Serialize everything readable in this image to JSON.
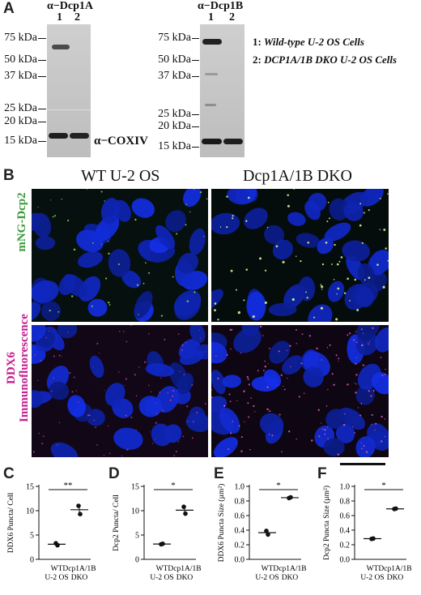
{
  "panels": {
    "A": "A",
    "B": "B",
    "C": "C",
    "D": "D",
    "E": "E",
    "F": "F"
  },
  "blots": [
    {
      "antibody": "α−Dcp1A",
      "lanes": [
        "1",
        "2"
      ],
      "mw_markers": [
        "75 kDa",
        "50 kDa",
        "37 kDa",
        "25 kDa",
        "20 kDa",
        "15 kDa"
      ],
      "loading_control": "α−COXIV"
    },
    {
      "antibody": "α−Dcp1B",
      "lanes": [
        "1",
        "2"
      ],
      "mw_markers": [
        "75 kDa",
        "50 kDa",
        "37 kDa",
        "25 kDa",
        "20 kDa",
        "15 kDa"
      ]
    }
  ],
  "legend": [
    {
      "num": "1:",
      "text": "Wild-type U-2 OS Cells"
    },
    {
      "num": "2:",
      "text": "DCP1A/1B DKO U-2 OS Cells"
    }
  ],
  "micrographs": {
    "columns": [
      "WT U-2 OS",
      "Dcp1A/1B DKO"
    ],
    "rows": [
      {
        "lines": [
          "mNG-Dcp2"
        ],
        "color": "#3c9a3c"
      },
      {
        "lines": [
          "DDX6",
          "Immunofluorescence"
        ],
        "color": "#c21f8f"
      }
    ]
  },
  "charts": [
    {
      "type": "scatter",
      "ylabel": "DDX6 Puncta/ Cell",
      "yticks": [
        "0",
        "5",
        "10",
        "15"
      ],
      "ylim": [
        0,
        15
      ],
      "categories": [
        [
          "WT",
          "U-2 OS"
        ],
        [
          "Dcp1A/1B",
          "DKO"
        ]
      ],
      "points": [
        [
          3.3,
          2.9
        ],
        [
          11.0,
          9.3
        ]
      ],
      "means": [
        3.1,
        10.2
      ],
      "significance": "**"
    },
    {
      "type": "scatter",
      "ylabel": "Dcp2 Puncta/ Cell",
      "yticks": [
        "0",
        "5",
        "10",
        "15"
      ],
      "ylim": [
        0,
        15
      ],
      "categories": [
        [
          "WT",
          "U-2 OS"
        ],
        [
          "Dcp1A/1B",
          "DKO"
        ]
      ],
      "points": [
        [
          3.1,
          3.2
        ],
        [
          10.8,
          9.4
        ]
      ],
      "means": [
        3.15,
        10.1
      ],
      "significance": "*"
    },
    {
      "type": "scatter",
      "ylabel": "DDX6 Puncta Size (µm²)",
      "yticks": [
        "0.0",
        "0.2",
        "0.4",
        "0.6",
        "0.8",
        "1.0"
      ],
      "ylim": [
        0,
        1.0
      ],
      "categories": [
        [
          "WT",
          "U-2 OS"
        ],
        [
          "Dcp1A/1B",
          "DKO"
        ]
      ],
      "points": [
        [
          0.39,
          0.34
        ],
        [
          0.84,
          0.85
        ]
      ],
      "means": [
        0.365,
        0.845
      ],
      "significance": "*"
    },
    {
      "type": "scatter",
      "ylabel": "Dcp2 Puncta Size (µm²)",
      "yticks": [
        "0.0",
        "0.2",
        "0.4",
        "0.6",
        "0.8",
        "1.0"
      ],
      "ylim": [
        0,
        1.0
      ],
      "categories": [
        [
          "WT",
          "U-2 OS"
        ],
        [
          "Dcp1A/1B",
          "DKO"
        ]
      ],
      "points": [
        [
          0.28,
          0.285
        ],
        [
          0.69,
          0.695
        ]
      ],
      "means": [
        0.283,
        0.692
      ],
      "significance": "*"
    }
  ],
  "chart_data": [
    {
      "type": "scatter",
      "ylabel": "DDX6 Puncta/ Cell",
      "categories": [
        "WT U-2 OS",
        "Dcp1A/1B DKO"
      ],
      "ylim": [
        0,
        15
      ],
      "series": [
        {
          "values": [
            [
              3.3,
              2.9
            ],
            [
              11.0,
              9.3
            ]
          ]
        }
      ],
      "means": [
        3.1,
        10.2
      ],
      "annotation": "**"
    },
    {
      "type": "scatter",
      "ylabel": "Dcp2 Puncta/ Cell",
      "categories": [
        "WT U-2 OS",
        "Dcp1A/1B DKO"
      ],
      "ylim": [
        0,
        15
      ],
      "series": [
        {
          "values": [
            [
              3.1,
              3.2
            ],
            [
              10.8,
              9.4
            ]
          ]
        }
      ],
      "means": [
        3.15,
        10.1
      ],
      "annotation": "*"
    },
    {
      "type": "scatter",
      "ylabel": "DDX6 Puncta Size (µm²)",
      "categories": [
        "WT U-2 OS",
        "Dcp1A/1B DKO"
      ],
      "ylim": [
        0,
        1.0
      ],
      "series": [
        {
          "values": [
            [
              0.39,
              0.34
            ],
            [
              0.84,
              0.85
            ]
          ]
        }
      ],
      "means": [
        0.365,
        0.845
      ],
      "annotation": "*"
    },
    {
      "type": "scatter",
      "ylabel": "Dcp2 Puncta Size (µm²)",
      "categories": [
        "WT U-2 OS",
        "Dcp1A/1B DKO"
      ],
      "ylim": [
        0,
        1.0
      ],
      "series": [
        {
          "values": [
            [
              0.28,
              0.285
            ],
            [
              0.69,
              0.695
            ]
          ]
        }
      ],
      "means": [
        0.283,
        0.692
      ],
      "annotation": "*"
    }
  ]
}
